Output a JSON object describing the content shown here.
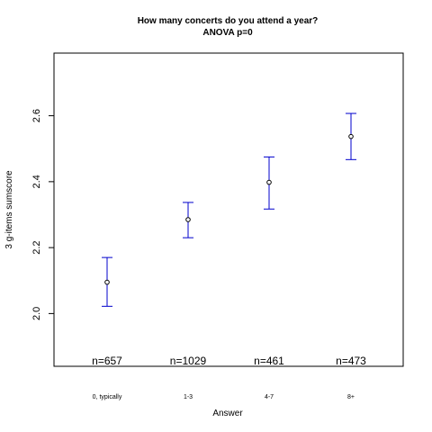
{
  "chart_data": {
    "type": "scatter",
    "title": "How many concerts do you attend a year?",
    "subtitle": "ANOVA p=0",
    "xlabel": "Answer",
    "ylabel": "3 g-items sumscore",
    "categories": [
      "0, typically",
      "1-3",
      "4-7",
      "8+"
    ],
    "means": [
      2.095,
      2.285,
      2.398,
      2.537
    ],
    "ci_lower": [
      2.022,
      2.23,
      2.317,
      2.467
    ],
    "ci_upper": [
      2.17,
      2.337,
      2.475,
      2.607
    ],
    "counts": [
      "n=657",
      "n=1029",
      "n=461",
      "n=473"
    ],
    "ylim": [
      1.84,
      2.79
    ],
    "yticks": [
      2.0,
      2.2,
      2.4,
      2.6
    ],
    "ytick_labels": [
      "2.0",
      "2.2",
      "2.4",
      "2.6"
    ],
    "error_bar_color": "#0000cc",
    "point_color": "#000000",
    "grid": false,
    "legend": "none"
  }
}
